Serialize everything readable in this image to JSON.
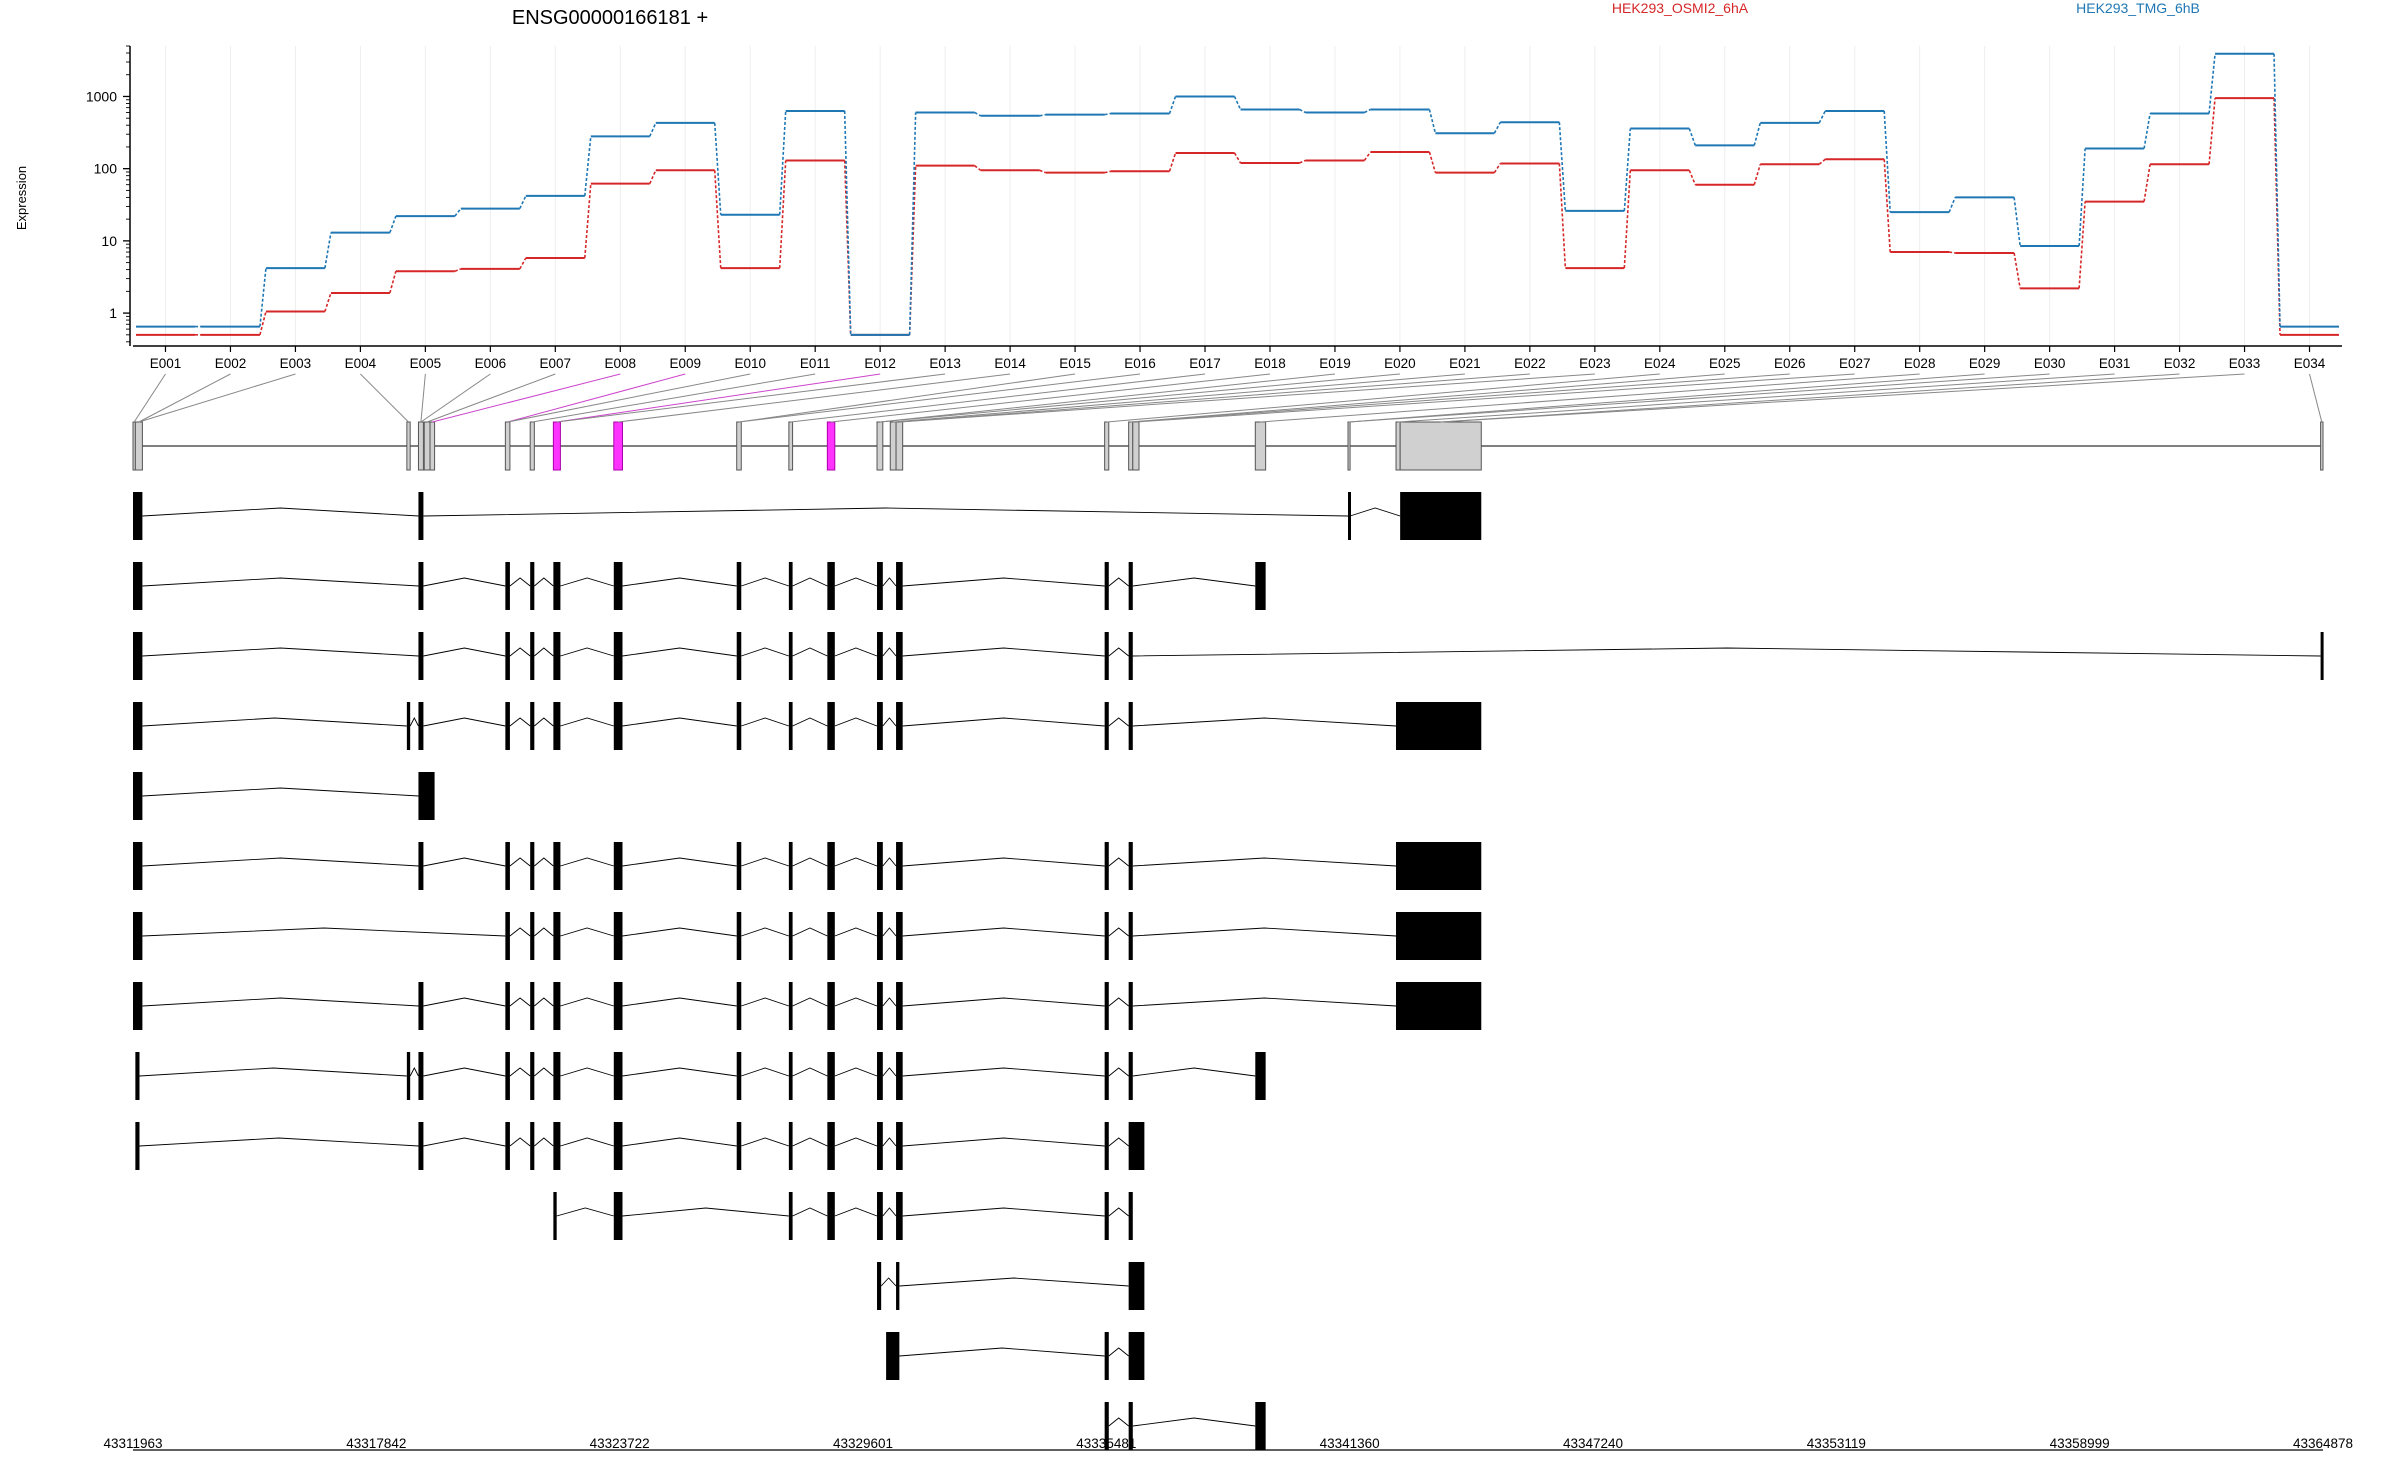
{
  "title": "ENSG00000166181 +",
  "ylabel": "Expression",
  "chart_data": {
    "type": "line",
    "title": "ENSG00000166181 +",
    "ylabel": "Expression",
    "yscale": "log",
    "yticks": [
      1,
      10,
      100,
      1000
    ],
    "ytick_labels": [
      "1",
      "10",
      "100",
      "1000"
    ],
    "ylim": [
      0.35,
      5000
    ],
    "legend_placement": "top-right",
    "categories": [
      "E001",
      "E002",
      "E003",
      "E004",
      "E005",
      "E006",
      "E007",
      "E008",
      "E009",
      "E010",
      "E011",
      "E012",
      "E013",
      "E014",
      "E015",
      "E016",
      "E017",
      "E018",
      "E019",
      "E020",
      "E021",
      "E022",
      "E023",
      "E024",
      "E025",
      "E026",
      "E027",
      "E028",
      "E029",
      "E030",
      "E031",
      "E032",
      "E033",
      "E034"
    ],
    "series": [
      {
        "name": "HEK293_OSMI2_6hA",
        "color": "#d62728",
        "values": [
          0.5,
          0.5,
          1.05,
          1.9,
          3.8,
          4.1,
          5.8,
          62,
          95,
          4.2,
          130,
          0.5,
          110,
          95,
          88,
          92,
          165,
          120,
          130,
          170,
          88,
          118,
          4.2,
          95,
          60,
          115,
          135,
          7,
          6.8,
          2.2,
          35,
          115,
          950,
          0.5
        ]
      },
      {
        "name": "HEK293_TMG_6hB",
        "color": "#1f77b4",
        "values": [
          0.65,
          0.65,
          4.2,
          13,
          22,
          28,
          42,
          280,
          430,
          23,
          630,
          0.5,
          600,
          540,
          560,
          580,
          1000,
          660,
          600,
          660,
          310,
          440,
          26,
          360,
          210,
          430,
          630,
          25,
          40,
          8.5,
          190,
          580,
          3900,
          0.65
        ]
      }
    ],
    "genomic_axis": {
      "tick_labels": [
        "43311963",
        "43317842",
        "43323722",
        "43329601",
        "43335481",
        "43341360",
        "43347240",
        "43353119",
        "43358999",
        "43364878"
      ],
      "range": [
        43311963,
        43364878
      ]
    },
    "highlighted_exons": [
      "E008",
      "E009",
      "E012"
    ]
  }
}
